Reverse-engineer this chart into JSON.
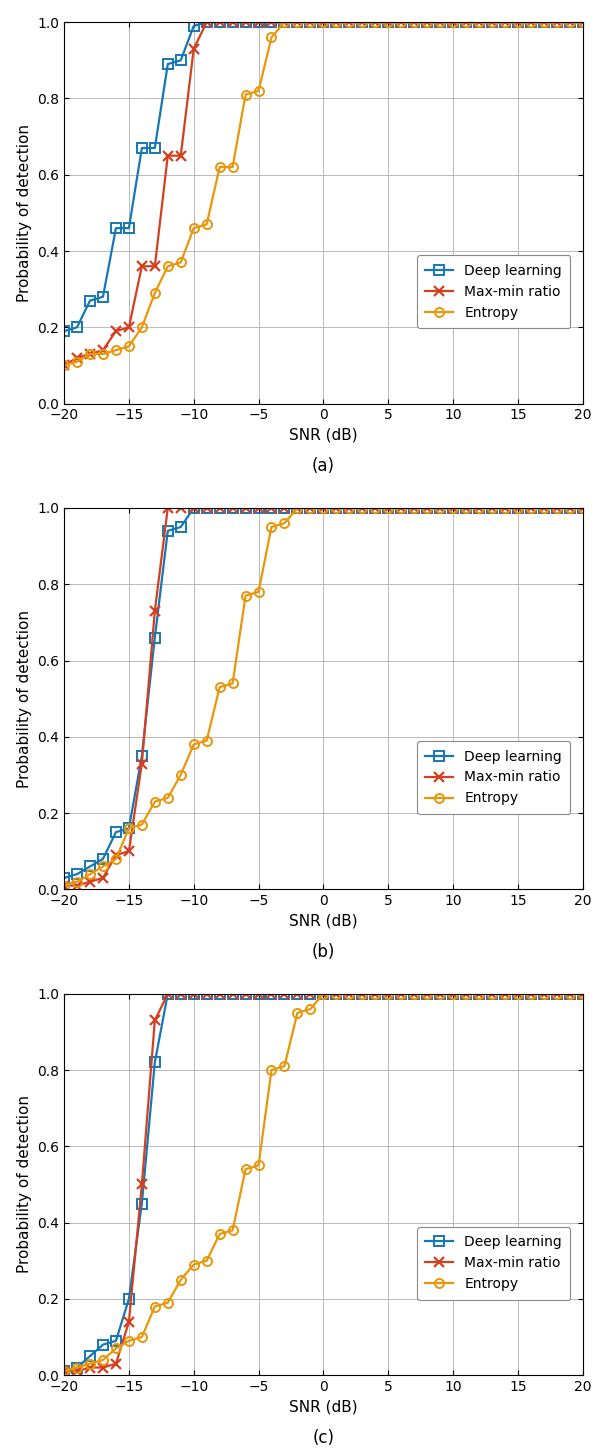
{
  "subplots": [
    {
      "label": "(a)",
      "snr_dl": [
        -20,
        -19,
        -18,
        -17,
        -16,
        -15,
        -14,
        -13,
        -12,
        -11,
        -10,
        -9,
        -8
      ],
      "dl": [
        0.19,
        0.2,
        0.27,
        0.28,
        0.46,
        0.46,
        0.67,
        0.67,
        0.89,
        0.9,
        0.99,
        1.0,
        1.0
      ],
      "snr_mm": [
        -20,
        -19,
        -18,
        -17,
        -16,
        -15,
        -14,
        -13,
        -12,
        -11,
        -10,
        -9
      ],
      "mm": [
        0.1,
        0.12,
        0.13,
        0.14,
        0.19,
        0.2,
        0.36,
        0.36,
        0.65,
        0.65,
        0.93,
        1.0
      ],
      "snr_en": [
        -20,
        -19,
        -18,
        -17,
        -16,
        -15,
        -14,
        -13,
        -12,
        -11,
        -10,
        -9,
        -8,
        -7,
        -6,
        -5,
        -4,
        -3
      ],
      "en": [
        0.1,
        0.11,
        0.13,
        0.13,
        0.14,
        0.15,
        0.2,
        0.29,
        0.36,
        0.37,
        0.46,
        0.47,
        0.62,
        0.62,
        0.81,
        0.82,
        0.96,
        1.0
      ]
    },
    {
      "label": "(b)",
      "snr_dl": [
        -20,
        -19,
        -18,
        -17,
        -16,
        -15,
        -14,
        -13,
        -12,
        -11,
        -10,
        -9
      ],
      "dl": [
        0.03,
        0.04,
        0.06,
        0.08,
        0.15,
        0.16,
        0.35,
        0.66,
        0.94,
        0.95,
        1.0,
        1.0
      ],
      "snr_mm": [
        -20,
        -19,
        -18,
        -17,
        -16,
        -15,
        -14,
        -13,
        -12,
        -11,
        -10
      ],
      "mm": [
        0.01,
        0.01,
        0.02,
        0.03,
        0.09,
        0.1,
        0.33,
        0.73,
        1.0,
        1.0,
        1.0
      ],
      "snr_en": [
        -20,
        -19,
        -18,
        -17,
        -16,
        -15,
        -14,
        -13,
        -12,
        -11,
        -10,
        -9,
        -8,
        -7,
        -6,
        -5,
        -4,
        -3,
        -2
      ],
      "en": [
        0.01,
        0.02,
        0.04,
        0.06,
        0.08,
        0.16,
        0.17,
        0.23,
        0.24,
        0.3,
        0.38,
        0.39,
        0.53,
        0.54,
        0.77,
        0.78,
        0.95,
        0.96,
        1.0
      ]
    },
    {
      "label": "(c)",
      "snr_dl": [
        -20,
        -19,
        -18,
        -17,
        -16,
        -15,
        -14,
        -13,
        -12,
        -11,
        -10,
        -9
      ],
      "dl": [
        0.01,
        0.02,
        0.05,
        0.08,
        0.09,
        0.2,
        0.45,
        0.82,
        1.0,
        1.0,
        1.0,
        1.0
      ],
      "snr_mm": [
        -20,
        -19,
        -18,
        -17,
        -16,
        -15,
        -14,
        -13,
        -12,
        -11,
        -10,
        -9
      ],
      "mm": [
        0.01,
        0.01,
        0.02,
        0.02,
        0.03,
        0.14,
        0.5,
        0.93,
        1.0,
        1.0,
        1.0,
        1.0
      ],
      "snr_en": [
        -20,
        -19,
        -18,
        -17,
        -16,
        -15,
        -14,
        -13,
        -12,
        -11,
        -10,
        -9,
        -8,
        -7,
        -6,
        -5,
        -4,
        -3,
        -2,
        -1,
        0
      ],
      "en": [
        0.01,
        0.02,
        0.03,
        0.04,
        0.07,
        0.09,
        0.1,
        0.18,
        0.19,
        0.25,
        0.29,
        0.3,
        0.37,
        0.38,
        0.54,
        0.55,
        0.8,
        0.81,
        0.95,
        0.96,
        1.0
      ]
    }
  ],
  "snr_full": [
    -20,
    -19,
    -18,
    -17,
    -16,
    -15,
    -14,
    -13,
    -12,
    -11,
    -10,
    -9,
    -8,
    -7,
    -6,
    -5,
    -4,
    -3,
    -2,
    -1,
    0,
    1,
    2,
    3,
    4,
    5,
    6,
    7,
    8,
    9,
    10,
    11,
    12,
    13,
    14,
    15,
    16,
    17,
    18,
    19,
    20
  ],
  "color_dl": "#1777b4",
  "color_mm": "#d4401f",
  "color_en": "#e8960a",
  "xlabel": "SNR (dB)",
  "ylabel": "Probability of detection",
  "xlim": [
    -20,
    20
  ],
  "ylim": [
    0,
    1
  ],
  "xticks": [
    -20,
    -15,
    -10,
    -5,
    0,
    5,
    10,
    15,
    20
  ],
  "yticks": [
    0,
    0.2,
    0.4,
    0.6,
    0.8,
    1
  ],
  "legend_labels": [
    "Deep learning",
    "Max-min ratio",
    "Entropy"
  ],
  "figsize": [
    6.08,
    14.56
  ],
  "dpi": 100
}
